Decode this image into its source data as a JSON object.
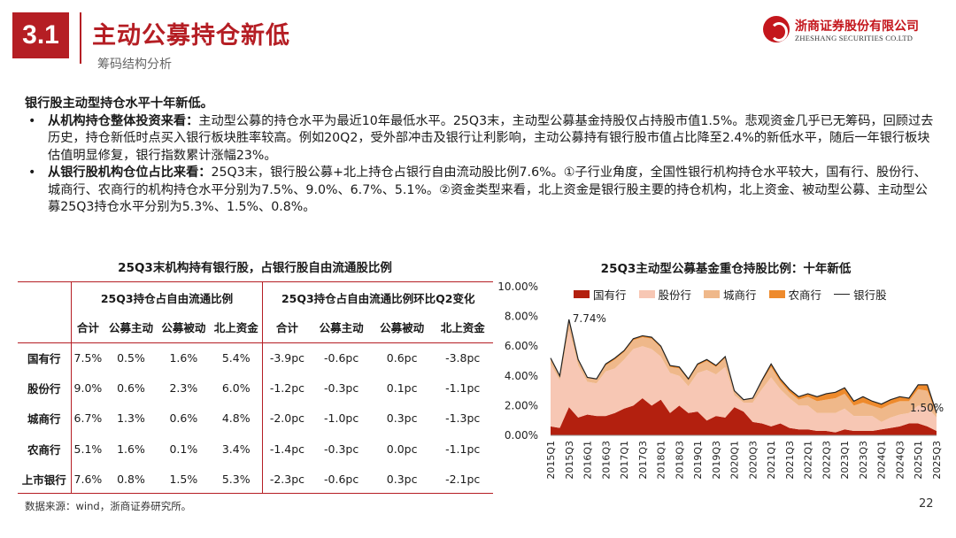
{
  "header": {
    "section_no": "3.1",
    "title": "主动公募持仓新低",
    "subtitle": "筹码结构分析",
    "logo_cn": "浙商证券股份有限公司",
    "logo_en": "ZHESHANG SECURITIES CO.LTD"
  },
  "body": {
    "lead": "银行股主动型持仓水平十年新低。",
    "bullets": [
      {
        "bold": "从机构持仓整体投资来看：",
        "text": "主动型公募的持仓水平为最近10年最低水平。25Q3末，主动型公募基金持股仅占持股市值1.5%。悲观资金几乎已无筹码，回顾过去历史，持仓新低时点买入银行板块胜率较高。例如20Q2，受外部冲击及银行让利影响，主动公募持有银行股市值占比降至2.4%的新低水平，随后一年银行板块估值明显修复，银行指数累计涨幅23%。"
      },
      {
        "bold": "从银行股机构仓位占比来看：",
        "text": "25Q3末，银行股公募+北上持仓占银行自由流动股比例7.6%。①子行业角度，全国性银行机构持仓水平较大，国有行、股份行、城商行、农商行的机构持仓水平分别为7.5%、9.0%、6.7%、5.1%。②资金类型来看，北上资金是银行股主要的持仓机构，北上资金、被动型公募、主动型公募25Q3持仓水平分别为5.3%、1.5%、0.8%。"
      }
    ]
  },
  "table": {
    "title": "25Q3末机构持有银行股，占银行股自由流通股比例",
    "group1": "25Q3持仓占自由流通比例",
    "group2": "25Q3持仓占自由流通比例环比Q2变化",
    "subheaders": [
      "合计",
      "公募主动",
      "公募被动",
      "北上资金",
      "合计",
      "公募主动",
      "公募被动",
      "北上资金"
    ],
    "rows": [
      {
        "name": "国有行",
        "cells": [
          "7.5%",
          "0.5%",
          "1.6%",
          "5.4%",
          "-3.9pc",
          "-0.6pc",
          "0.6pc",
          "-3.8pc"
        ]
      },
      {
        "name": "股份行",
        "cells": [
          "9.0%",
          "0.6%",
          "2.3%",
          "6.0%",
          "-1.2pc",
          "-0.3pc",
          "0.1pc",
          "-1.1pc"
        ]
      },
      {
        "name": "城商行",
        "cells": [
          "6.7%",
          "1.3%",
          "0.6%",
          "4.8%",
          "-2.0pc",
          "-1.0pc",
          "0.3pc",
          "-1.3pc"
        ]
      },
      {
        "name": "农商行",
        "cells": [
          "5.1%",
          "1.6%",
          "0.1%",
          "3.4%",
          "-1.4pc",
          "-0.3pc",
          "0.0pc",
          "-1.1pc"
        ]
      },
      {
        "name": "上市银行",
        "cells": [
          "7.6%",
          "0.8%",
          "1.5%",
          "5.3%",
          "-2.3pc",
          "-0.6pc",
          "0.3pc",
          "-2.1pc"
        ]
      }
    ]
  },
  "footer": {
    "source": "数据来源：wind，浙商证券研究所。",
    "page": "22"
  },
  "chart_data": {
    "type": "area",
    "title": "25Q3主动型公募基金重仓持股比例：十年新低",
    "ylim": [
      0,
      10
    ],
    "yticks": [
      "0.00%",
      "2.00%",
      "4.00%",
      "6.00%",
      "8.00%",
      "10.00%"
    ],
    "x": [
      "2015Q1",
      "2015Q2",
      "2015Q3",
      "2015Q4",
      "2016Q1",
      "2016Q2",
      "2016Q3",
      "2016Q4",
      "2017Q1",
      "2017Q2",
      "2017Q3",
      "2017Q4",
      "2018Q1",
      "2018Q2",
      "2018Q3",
      "2018Q4",
      "2019Q1",
      "2019Q2",
      "2019Q3",
      "2019Q4",
      "2020Q1",
      "2020Q2",
      "2020Q3",
      "2020Q4",
      "2021Q1",
      "2021Q2",
      "2021Q3",
      "2021Q4",
      "2022Q1",
      "2022Q2",
      "2022Q3",
      "2022Q4",
      "2023Q1",
      "2023Q2",
      "2023Q3",
      "2023Q4",
      "2024Q1",
      "2024Q2",
      "2024Q3",
      "2024Q4",
      "2025Q1",
      "2025Q2",
      "2025Q3"
    ],
    "xticks_shown": [
      "2015Q1",
      "2015Q3",
      "2016Q1",
      "2016Q3",
      "2017Q1",
      "2017Q3",
      "2018Q1",
      "2018Q3",
      "2019Q1",
      "2019Q3",
      "2020Q1",
      "2020Q3",
      "2021Q1",
      "2021Q3",
      "2022Q1",
      "2022Q3",
      "2023Q1",
      "2023Q3",
      "2024Q1",
      "2024Q3",
      "2025Q1",
      "2025Q3"
    ],
    "series": [
      {
        "name": "国有行",
        "color": "#b3200f",
        "values": [
          0.6,
          0.5,
          1.9,
          1.2,
          1.4,
          1.3,
          1.3,
          1.5,
          1.8,
          2.0,
          2.5,
          2.0,
          2.4,
          1.5,
          2.0,
          1.5,
          1.6,
          1.0,
          1.3,
          1.2,
          1.9,
          1.6,
          0.9,
          0.8,
          0.6,
          0.8,
          0.5,
          0.4,
          0.4,
          0.3,
          0.3,
          0.2,
          0.4,
          0.3,
          0.3,
          0.3,
          0.4,
          0.5,
          0.6,
          0.8,
          0.8,
          0.6,
          0.3
        ]
      },
      {
        "name": "股份行",
        "color": "#f7c7b4",
        "values": [
          4.2,
          3.2,
          5.2,
          3.5,
          2.2,
          2.2,
          3.0,
          3.0,
          3.3,
          3.8,
          3.5,
          3.8,
          2.9,
          2.7,
          2.0,
          1.8,
          2.6,
          3.4,
          2.8,
          3.4,
          0.8,
          0.6,
          1.3,
          2.3,
          3.3,
          2.3,
          2.0,
          1.6,
          1.6,
          1.2,
          1.2,
          1.3,
          1.4,
          1.0,
          1.0,
          1.0,
          0.5,
          0.7,
          0.8,
          0.7,
          1.2,
          1.3,
          0.9
        ]
      },
      {
        "name": "城商行",
        "color": "#efb88a",
        "values": [
          0.4,
          0.3,
          0.6,
          0.3,
          0.3,
          0.3,
          0.4,
          0.6,
          0.5,
          0.6,
          0.6,
          0.7,
          0.6,
          0.4,
          0.5,
          0.4,
          0.5,
          0.6,
          0.5,
          0.6,
          0.3,
          0.2,
          0.3,
          0.5,
          0.7,
          0.5,
          0.4,
          0.4,
          0.6,
          0.8,
          0.9,
          1.0,
          1.0,
          0.7,
          0.9,
          0.7,
          0.9,
          0.9,
          0.9,
          0.8,
          1.1,
          1.1,
          0.2
        ]
      },
      {
        "name": "农商行",
        "color": "#ee8a2c",
        "values": [
          0.0,
          0.0,
          0.1,
          0.1,
          0.0,
          0.0,
          0.1,
          0.1,
          0.1,
          0.1,
          0.1,
          0.1,
          0.1,
          0.1,
          0.1,
          0.1,
          0.1,
          0.1,
          0.1,
          0.1,
          0.0,
          0.0,
          0.0,
          0.1,
          0.2,
          0.2,
          0.2,
          0.2,
          0.2,
          0.3,
          0.4,
          0.4,
          0.4,
          0.3,
          0.4,
          0.3,
          0.3,
          0.3,
          0.3,
          0.2,
          0.3,
          0.4,
          0.1
        ]
      },
      {
        "name": "银行股",
        "color": "#222222",
        "line": true
      }
    ],
    "annotations": [
      {
        "x": "2015Q3",
        "y": 7.74,
        "text": "7.74%"
      },
      {
        "x": "2025Q3",
        "y": 1.5,
        "text": "1.50%"
      }
    ],
    "legend": "top"
  }
}
